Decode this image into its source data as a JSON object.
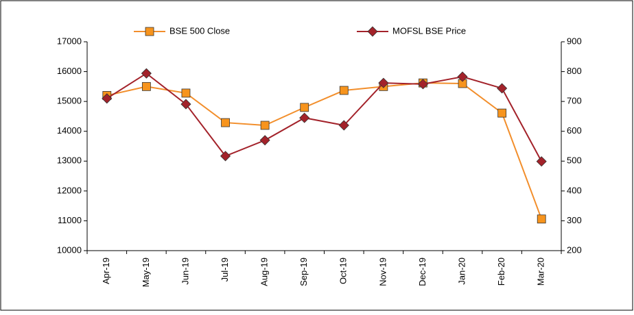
{
  "chart_data": {
    "type": "line",
    "categories": [
      "Apr-19",
      "May-19",
      "Jun-19",
      "Jul-19",
      "Aug-19",
      "Sep-19",
      "Oct-19",
      "Nov-19",
      "Dec-19",
      "Jan-20",
      "Feb-20",
      "Mar-20"
    ],
    "series": [
      {
        "name": "BSE 500 Close",
        "color": "#f28e2b",
        "marker": "square",
        "marker_color": "#f7941d",
        "values": [
          15200,
          15500,
          15280,
          14290,
          14200,
          14800,
          15370,
          15500,
          15620,
          15600,
          14610,
          11060
        ]
      },
      {
        "name": "MOFSL BSE Price",
        "color": "#a3222a",
        "marker": "diamond",
        "marker_color": "#a3222a",
        "axis": "y2",
        "values": [
          710,
          794,
          691,
          517,
          570,
          645,
          620,
          762,
          758,
          783,
          744,
          499
        ]
      }
    ],
    "ylim": [
      10000,
      17000
    ],
    "yticks": [
      10000,
      11000,
      12000,
      13000,
      14000,
      15000,
      16000,
      17000
    ],
    "y2lim": [
      200,
      900
    ],
    "y2ticks": [
      200,
      300,
      400,
      500,
      600,
      700,
      800,
      900
    ],
    "legend": "top"
  }
}
